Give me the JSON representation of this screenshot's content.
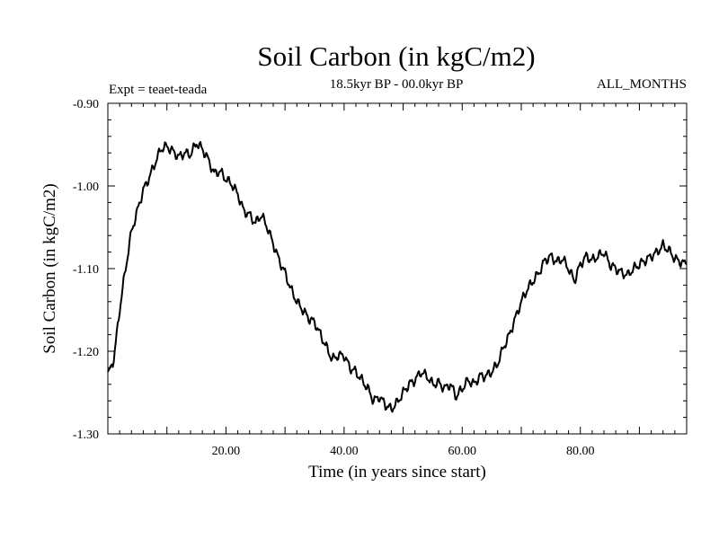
{
  "chart_data": {
    "type": "line",
    "title": "Soil Carbon (in kgC/m2)",
    "subtitle": "18.5kyr BP - 00.0kyr BP",
    "left_note": "Expt = teaet-teada",
    "right_note": "ALL_MONTHS",
    "xlabel": "Time (in years since start)",
    "ylabel": "Soil Carbon (in kgC/m2)",
    "xlim": [
      0,
      98
    ],
    "ylim": [
      -1.3,
      -0.9
    ],
    "xticks": [
      20,
      40,
      60,
      80
    ],
    "xtick_labels": [
      "20.00",
      "40.00",
      "60.00",
      "80.00"
    ],
    "yticks": [
      -0.9,
      -1.0,
      -1.1,
      -1.2,
      -1.3
    ],
    "ytick_labels": [
      "-0.90",
      "-1.00",
      "-1.10",
      "-1.20",
      "-1.30"
    ],
    "series": [
      {
        "name": "Soil Carbon",
        "color": "#000000",
        "x": [
          0,
          1,
          2,
          3,
          4,
          5,
          6,
          7,
          8,
          9,
          10,
          11,
          12,
          13,
          14,
          15,
          16,
          17,
          18,
          19,
          20,
          21,
          22,
          23,
          24,
          25,
          26,
          27,
          28,
          29,
          30,
          31,
          32,
          33,
          34,
          35,
          36,
          37,
          38,
          39,
          40,
          41,
          42,
          43,
          44,
          45,
          46,
          47,
          48,
          49,
          50,
          51,
          52,
          53,
          54,
          55,
          56,
          57,
          58,
          59,
          60,
          61,
          62,
          63,
          64,
          65,
          66,
          67,
          68,
          69,
          70,
          71,
          72,
          73,
          74,
          75,
          76,
          77,
          78,
          79,
          80,
          81,
          82,
          83,
          84,
          85,
          86,
          87,
          88,
          89,
          90,
          91,
          92,
          93,
          94,
          95,
          96,
          97,
          98
        ],
        "values": [
          -1.225,
          -1.21,
          -1.15,
          -1.1,
          -1.055,
          -1.03,
          -1.005,
          -0.99,
          -0.972,
          -0.955,
          -0.952,
          -0.958,
          -0.965,
          -0.96,
          -0.962,
          -0.948,
          -0.955,
          -0.968,
          -0.985,
          -0.982,
          -0.992,
          -0.998,
          -1.01,
          -1.03,
          -1.035,
          -1.045,
          -1.035,
          -1.05,
          -1.07,
          -1.09,
          -1.105,
          -1.125,
          -1.14,
          -1.15,
          -1.16,
          -1.165,
          -1.18,
          -1.195,
          -1.21,
          -1.205,
          -1.205,
          -1.22,
          -1.225,
          -1.235,
          -1.245,
          -1.26,
          -1.255,
          -1.265,
          -1.27,
          -1.262,
          -1.25,
          -1.24,
          -1.235,
          -1.225,
          -1.23,
          -1.24,
          -1.238,
          -1.245,
          -1.24,
          -1.255,
          -1.245,
          -1.235,
          -1.24,
          -1.23,
          -1.23,
          -1.225,
          -1.215,
          -1.195,
          -1.18,
          -1.16,
          -1.14,
          -1.125,
          -1.115,
          -1.105,
          -1.09,
          -1.085,
          -1.092,
          -1.088,
          -1.1,
          -1.115,
          -1.095,
          -1.085,
          -1.09,
          -1.085,
          -1.08,
          -1.095,
          -1.1,
          -1.105,
          -1.108,
          -1.1,
          -1.095,
          -1.09,
          -1.085,
          -1.08,
          -1.072,
          -1.078,
          -1.088,
          -1.092,
          -1.095
        ]
      }
    ]
  }
}
